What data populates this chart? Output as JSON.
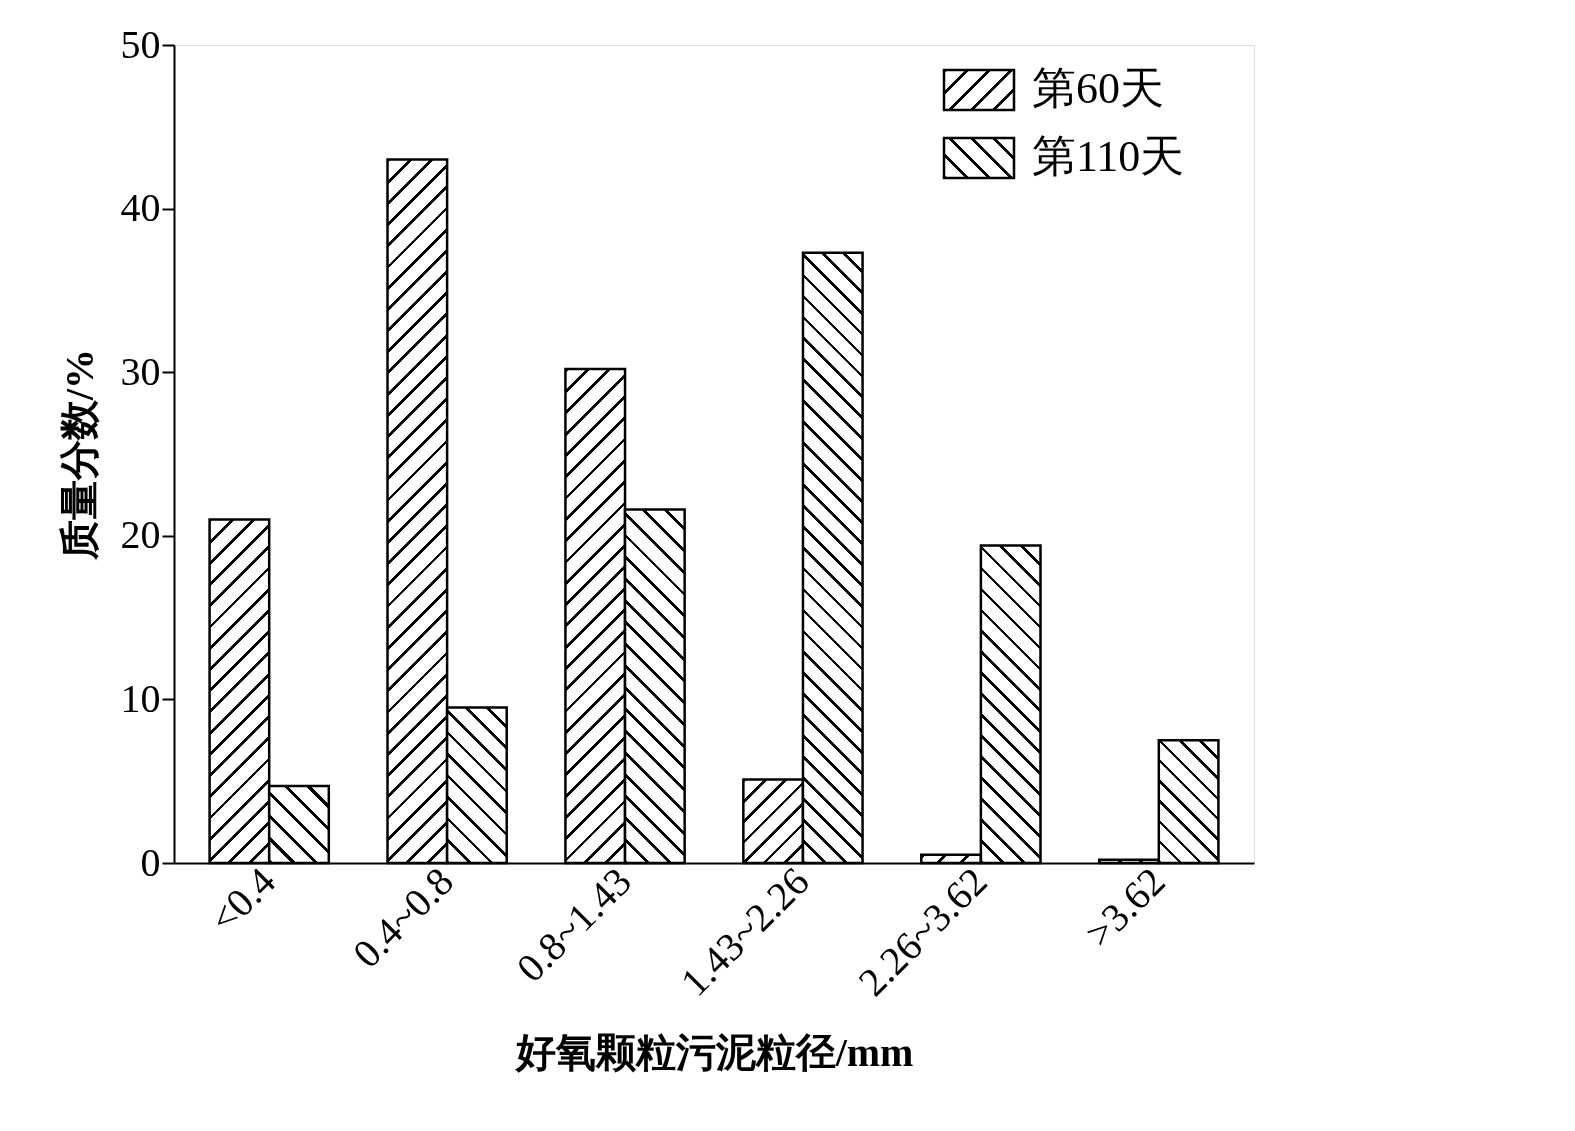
{
  "chart_data": {
    "type": "bar",
    "xlabel": "好氧颗粒污泥粒径/mm",
    "ylabel": "质量分数/%",
    "categories": [
      "<0.4",
      "0.4~0.8",
      "0.8~1.43",
      "1.43~2.26",
      "2.26~3.62",
      ">3.62"
    ],
    "series": [
      {
        "name": "第60天",
        "color": "#000000",
        "values": [
          21.0,
          43.0,
          30.2,
          5.1,
          0.5,
          0.2
        ]
      },
      {
        "name": "第110天",
        "color": "#000000",
        "values": [
          4.7,
          9.5,
          21.6,
          37.3,
          19.4,
          7.5
        ]
      }
    ],
    "ylim": [
      0,
      50
    ],
    "yticks": [
      0,
      10,
      20,
      30,
      40,
      50
    ],
    "grid": false,
    "legend": "top right"
  }
}
